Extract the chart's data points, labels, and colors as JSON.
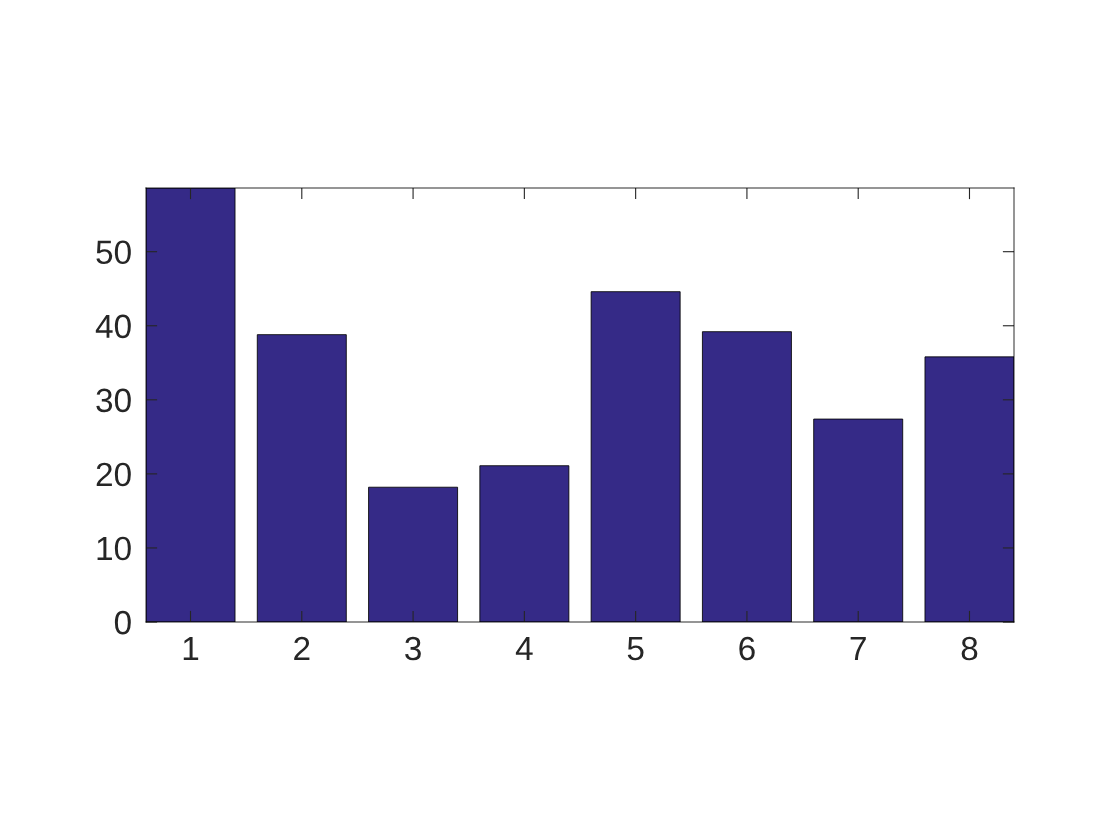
{
  "chart_data": {
    "type": "bar",
    "categories": [
      "1",
      "2",
      "3",
      "4",
      "5",
      "6",
      "7",
      "8"
    ],
    "values": [
      58.6,
      38.8,
      18.2,
      21.1,
      44.6,
      39.2,
      27.4,
      35.8
    ],
    "color": "#352a87",
    "ylim": [
      0,
      58.6
    ],
    "yticks": [
      0,
      10,
      20,
      30,
      40,
      50
    ],
    "grid": false,
    "legend": false
  }
}
